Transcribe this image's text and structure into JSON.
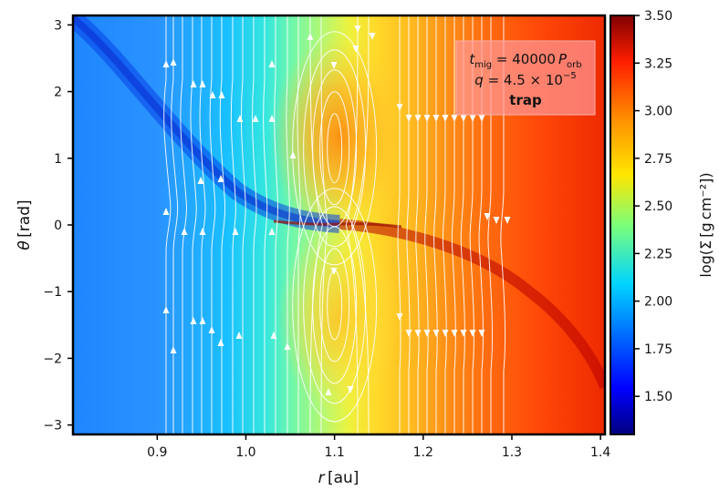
{
  "chart_data": {
    "type": "heatmap",
    "xlabel": "r [au]",
    "ylabel": "θ [rad]",
    "xlim": [
      0.805,
      1.405
    ],
    "ylim": [
      -3.1416,
      3.1416
    ],
    "x_ticks": [
      0.9,
      1.0,
      1.1,
      1.2,
      1.3,
      1.4
    ],
    "x_tick_labels": [
      "0.9",
      "1.0",
      "1.1",
      "1.2",
      "1.3",
      "1.4"
    ],
    "y_ticks": [
      3,
      2,
      1,
      0,
      -1,
      -2,
      -3
    ],
    "y_tick_labels": [
      "3",
      "2",
      "1",
      "0",
      "−1",
      "−2",
      "−3"
    ],
    "colorbar": {
      "label": "log(Σ [g cm⁻²])",
      "range": [
        1.3,
        3.5
      ],
      "ticks": [
        1.5,
        1.75,
        2.0,
        2.25,
        2.5,
        2.75,
        3.0,
        3.25,
        3.5
      ],
      "tick_labels": [
        "1.50",
        "1.75",
        "2.00",
        "2.25",
        "2.50",
        "2.75",
        "3.00",
        "3.25",
        "3.50"
      ],
      "colormap": "jet"
    },
    "annotation": {
      "line1": "t_mig = 40000 P_orb",
      "line1_parts": {
        "t": "t",
        "t_sub": "mig",
        "eq": " = 40000 ",
        "P": "P",
        "P_sub": "orb"
      },
      "line2_parts": {
        "q": "q",
        "eq": " = 4.5 × 10",
        "exp": "−5"
      },
      "line3": "trap",
      "box_color": "#ff9999"
    },
    "planet": {
      "r": 1.1,
      "theta": 0.0
    },
    "features": {
      "streamline_color": "#ffffff",
      "spiral_wake": "dense wake from lower-left to upper-left and lower-right",
      "horseshoe_region": [
        1.04,
        1.16
      ]
    }
  }
}
